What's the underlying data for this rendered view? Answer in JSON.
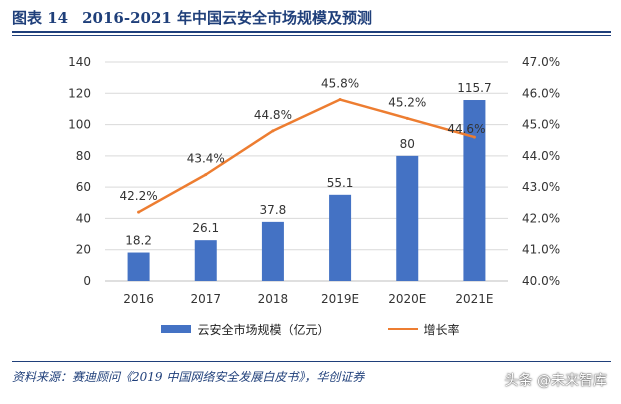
{
  "header": {
    "figure_label": "图表 14",
    "title": "2016-2021 年中国云安全市场规模及预测"
  },
  "chart_data": {
    "type": "bar",
    "title": "2016-2021 年中国云安全市场规模及预测",
    "categories": [
      "2016",
      "2017",
      "2018",
      "2019E",
      "2020E",
      "2021E"
    ],
    "series": [
      {
        "name": "云安全市场规模（亿元）",
        "type": "bar",
        "axis": "left",
        "color": "#4472c4",
        "values": [
          18.2,
          26.1,
          37.8,
          55.1,
          80,
          115.7
        ],
        "labels": [
          "18.2",
          "26.1",
          "37.8",
          "55.1",
          "80",
          "115.7"
        ]
      },
      {
        "name": "增长率",
        "type": "line",
        "axis": "right",
        "color": "#ed7d31",
        "values": [
          42.2,
          43.4,
          44.8,
          45.8,
          45.2,
          44.6
        ],
        "labels": [
          "42.2%",
          "43.4%",
          "44.8%",
          "45.8%",
          "45.2%",
          "44.6%"
        ]
      }
    ],
    "y_left": {
      "min": 0,
      "max": 140,
      "ticks": [
        0,
        20,
        40,
        60,
        80,
        100,
        120,
        140
      ],
      "tick_labels": [
        "0",
        "20",
        "40",
        "60",
        "80",
        "100",
        "120",
        "140"
      ]
    },
    "y_right": {
      "min": 40,
      "max": 47,
      "ticks": [
        40,
        41,
        42,
        43,
        44,
        45,
        46,
        47
      ],
      "tick_labels": [
        "40.0%",
        "41.0%",
        "42.0%",
        "43.0%",
        "44.0%",
        "45.0%",
        "46.0%",
        "47.0%"
      ]
    },
    "legend_position": "bottom"
  },
  "footer": {
    "source": "资料来源：赛迪顾问《2019 中国网络安全发展白皮书》，华创证券",
    "watermark": "头条 @未来智库"
  }
}
